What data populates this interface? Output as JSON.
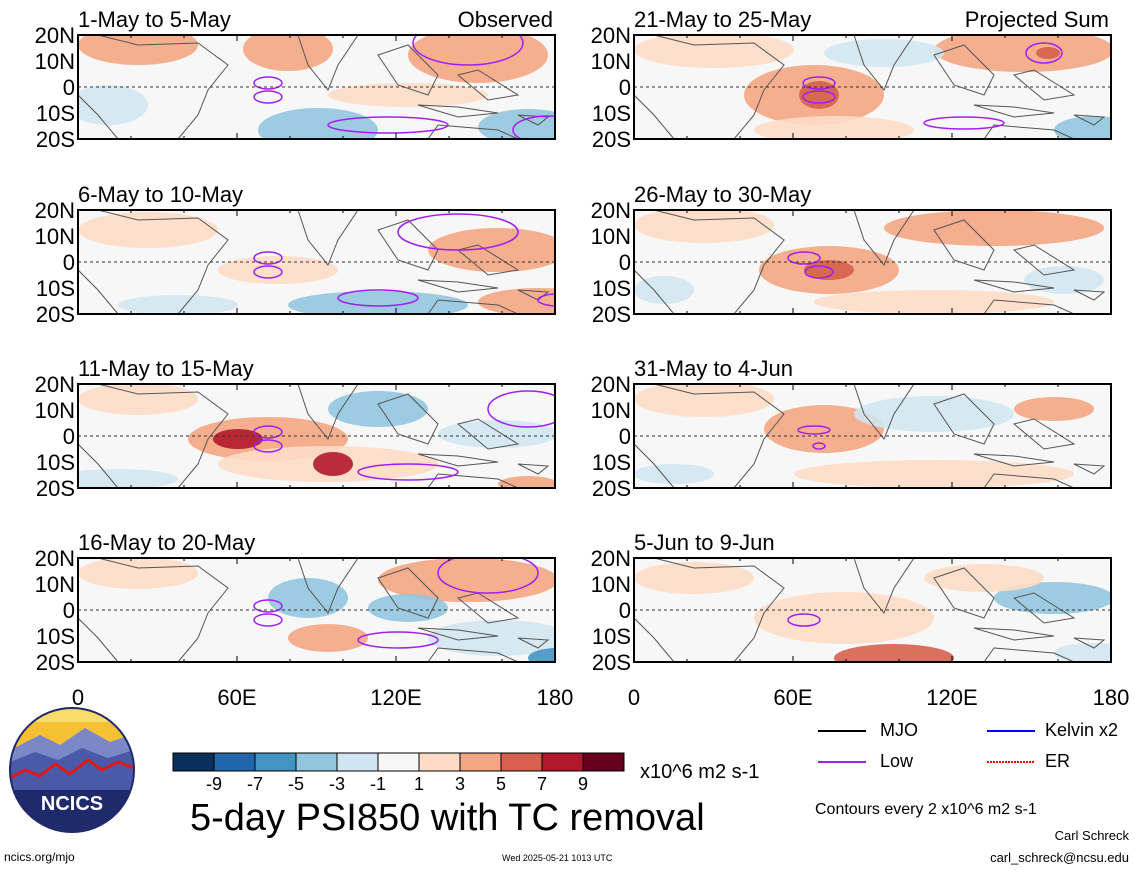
{
  "chart_data": {
    "type": "heatmap",
    "title": "5-day PSI850 with TC removal",
    "units": "x10^6 m2 s-1",
    "contour_note": "Contours every 2 x10^6 m2 s-1",
    "x_ticks": [
      "0",
      "60E",
      "120E",
      "180"
    ],
    "y_ticks": [
      "20N",
      "10N",
      "0",
      "10S",
      "20S"
    ],
    "xlim": [
      0,
      180
    ],
    "ylim": [
      -20,
      20
    ],
    "colorbar": {
      "ticks": [
        "-9",
        "-7",
        "-5",
        "-3",
        "-1",
        "1",
        "3",
        "5",
        "7",
        "9"
      ],
      "colors": [
        "#0b2f5c",
        "#2166ac",
        "#4393c3",
        "#92c5de",
        "#d1e5f0",
        "#f7f7f7",
        "#fddbc7",
        "#f4a582",
        "#d6604d",
        "#b2182b",
        "#67001f"
      ]
    },
    "legend": [
      {
        "label": "MJO",
        "color": "#000000"
      },
      {
        "label": "Kelvin x2",
        "color": "#0000ff"
      },
      {
        "label": "Low",
        "color": "#a020f0"
      },
      {
        "label": "ER",
        "color": "#ff0000"
      }
    ],
    "panels": [
      {
        "period": "1-May to 5-May",
        "tag": "Observed"
      },
      {
        "period": "6-May to 10-May",
        "tag": ""
      },
      {
        "period": "11-May to 15-May",
        "tag": ""
      },
      {
        "period": "16-May to 20-May",
        "tag": ""
      },
      {
        "period": "21-May to 25-May",
        "tag": "Projected Sum"
      },
      {
        "period": "26-May to 30-May",
        "tag": ""
      },
      {
        "period": "31-May to 4-Jun",
        "tag": ""
      },
      {
        "period": "5-Jun to 9-Jun",
        "tag": ""
      }
    ]
  },
  "logo": {
    "text": "NCICS"
  },
  "footer": {
    "url": "ncics.org/mjo",
    "timestamp": "Wed 2025-05-21 1013 UTC",
    "author": "Carl Schreck",
    "email": "carl_schreck@ncsu.edu"
  }
}
